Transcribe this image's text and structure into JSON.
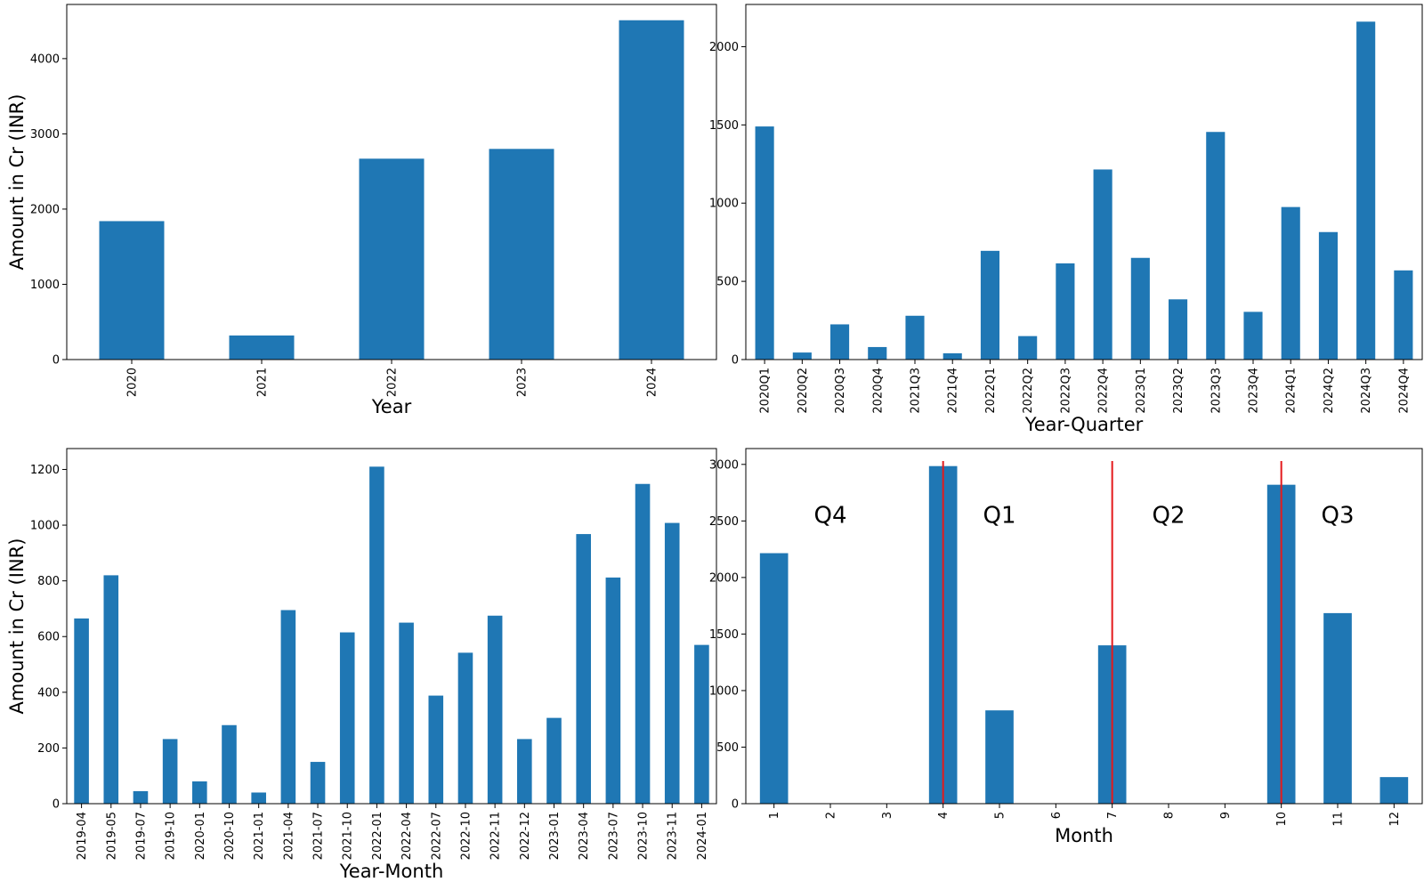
{
  "colors": {
    "bar": "#1f77b4",
    "divider": "#e41a1c",
    "axis": "#000000"
  },
  "chart_data": [
    {
      "type": "bar",
      "xlabel": "Year",
      "ylabel": "Amount in Cr (INR)",
      "categories": [
        "2020",
        "2021",
        "2022",
        "2023",
        "2024"
      ],
      "values": [
        1840,
        320,
        2670,
        2800,
        4510
      ],
      "ylim": [
        0,
        4720
      ],
      "yticks": [
        0,
        1000,
        2000,
        3000,
        4000
      ]
    },
    {
      "type": "bar",
      "xlabel": "Year-Quarter",
      "ylabel": "",
      "categories": [
        "2020Q1",
        "2020Q2",
        "2020Q3",
        "2020Q4",
        "2021Q3",
        "2021Q4",
        "2022Q1",
        "2022Q2",
        "2022Q3",
        "2022Q4",
        "2023Q1",
        "2023Q2",
        "2023Q3",
        "2023Q4",
        "2024Q1",
        "2024Q2",
        "2024Q3",
        "2024Q4"
      ],
      "values": [
        1490,
        45,
        225,
        80,
        280,
        40,
        695,
        150,
        615,
        1215,
        650,
        385,
        1455,
        305,
        975,
        815,
        2160,
        570
      ],
      "ylim": [
        0,
        2270
      ],
      "yticks": [
        0,
        500,
        1000,
        1500,
        2000
      ]
    },
    {
      "type": "bar",
      "xlabel": "Year-Month",
      "ylabel": "Amount in Cr (INR)",
      "categories": [
        "2019-04",
        "2019-05",
        "2019-07",
        "2019-10",
        "2020-01",
        "2020-10",
        "2021-01",
        "2021-04",
        "2021-07",
        "2021-10",
        "2022-01",
        "2022-04",
        "2022-07",
        "2022-10",
        "2022-11",
        "2022-12",
        "2023-01",
        "2023-04",
        "2023-07",
        "2023-10",
        "2023-11",
        "2024-01"
      ],
      "values": [
        665,
        820,
        45,
        232,
        80,
        282,
        40,
        695,
        150,
        615,
        1210,
        650,
        388,
        542,
        675,
        232,
        308,
        968,
        812,
        1148,
        1008,
        570
      ],
      "ylim": [
        0,
        1275
      ],
      "yticks": [
        0,
        200,
        400,
        600,
        800,
        1000,
        1200
      ]
    },
    {
      "type": "bar",
      "xlabel": "Month",
      "ylabel": "",
      "categories": [
        "1",
        "2",
        "3",
        "4",
        "5",
        "6",
        "7",
        "8",
        "9",
        "10",
        "11",
        "12"
      ],
      "values": [
        2215,
        0,
        0,
        2985,
        825,
        0,
        1400,
        0,
        0,
        2820,
        1685,
        235
      ],
      "ylim": [
        0,
        3140
      ],
      "yticks": [
        0,
        500,
        1000,
        1500,
        2000,
        2500,
        3000
      ],
      "annotations": [
        "Q4",
        "Q1",
        "Q2",
        "Q3"
      ]
    }
  ]
}
